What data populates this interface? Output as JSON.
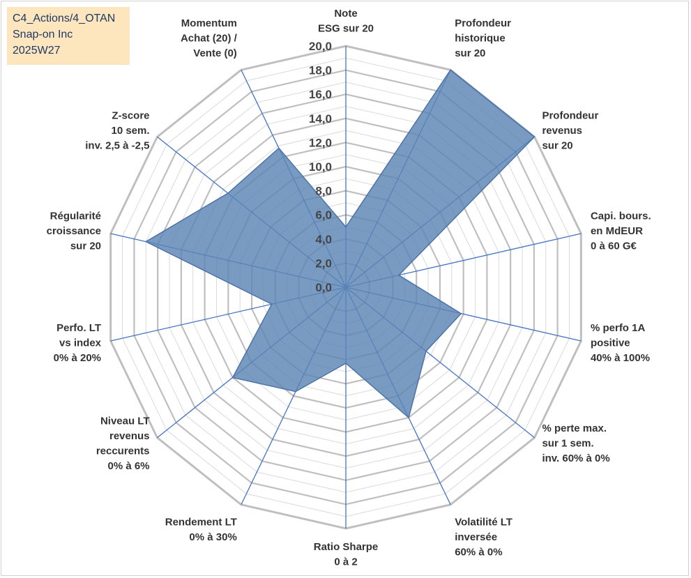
{
  "header": {
    "line1": "C4_Actions/4_OTAN",
    "line2": "Snap-on Inc",
    "line3": "2025W27"
  },
  "colors": {
    "fill": "#5b85b5",
    "stroke": "#4a73a8",
    "spoke": "#4472c4",
    "grid_major": "#bfbfbf",
    "grid_minor": "#d9d9d9"
  },
  "chart_data": {
    "type": "radar",
    "title": "",
    "rmin": 0,
    "rmax": 20,
    "tick_step": 2,
    "ticks": [
      "0,0",
      "2,0",
      "4,0",
      "6,0",
      "8,0",
      "10,0",
      "12,0",
      "14,0",
      "16,0",
      "18,0",
      "20,0"
    ],
    "axes": [
      {
        "label": [
          "Note",
          "ESG sur 20"
        ],
        "value": 5.0
      },
      {
        "label": [
          "Profondeur",
          "historique",
          "sur 20"
        ],
        "value": 20.0
      },
      {
        "label": [
          "Profondeur",
          "revenus",
          "sur 20"
        ],
        "value": 20.0
      },
      {
        "label": [
          "Capi. bours.",
          "en MdEUR",
          "0 à 60 G€"
        ],
        "value": 4.5
      },
      {
        "label": [
          "% perfo 1A",
          "positive",
          "40% à 100%"
        ],
        "value": 9.8
      },
      {
        "label": [
          "% perte max.",
          "sur 1 sem.",
          "inv. 60% à 0%"
        ],
        "value": 8.5
      },
      {
        "label": [
          "Volatilité LT",
          "inversée",
          "60% à 0%"
        ],
        "value": 12.0
      },
      {
        "label": [
          "Ratio Sharpe",
          "0 à 2"
        ],
        "value": 6.3
      },
      {
        "label": [
          "Rendement LT",
          "0% à 30%"
        ],
        "value": 9.6
      },
      {
        "label": [
          "Niveau LT",
          "revenus",
          "reccurents",
          "0% à 6%"
        ],
        "value": 12.0
      },
      {
        "label": [
          "Perfo. LT",
          "vs index",
          "0% à 20%"
        ],
        "value": 6.3
      },
      {
        "label": [
          "Régularité",
          "croissance",
          "sur 20"
        ],
        "value": 17.0
      },
      {
        "label": [
          "Z-score",
          "10 sem.",
          "inv. 2,5 à -2,5"
        ],
        "value": 12.5
      },
      {
        "label": [
          "Momentum",
          "Achat (20) /",
          "Vente (0)"
        ],
        "value": 12.8
      }
    ]
  }
}
